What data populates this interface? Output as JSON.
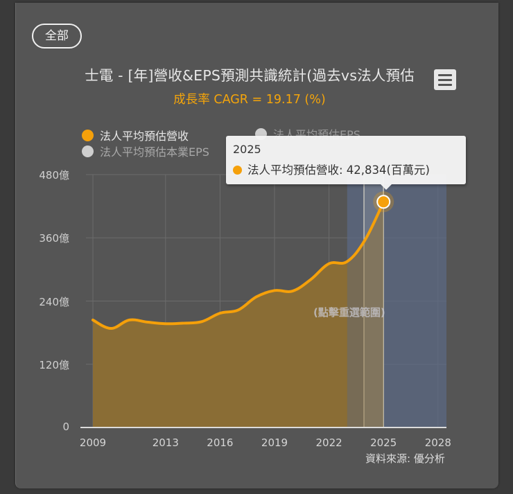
{
  "filter": {
    "label": "全部"
  },
  "header": {
    "title": "士電 - [年]營收&EPS預測共識統計(過去vs法人預估)",
    "title_visible": "士電 - [年]營收&EPS預測共識統計(過去vs法人預估",
    "subtitle": "成長率 CAGR = 19.17 (%)"
  },
  "menu": {
    "icon": "hamburger-menu-icon"
  },
  "legend": [
    {
      "label": "法人平均預估營收",
      "color": "#f5a00a",
      "active": true
    },
    {
      "label": "法人平均預估EPS",
      "color": "#cccccc",
      "active": false
    },
    {
      "label": "法人平均預估本業EPS",
      "color": "#cccccc",
      "active": false
    }
  ],
  "tooltip": {
    "header": "2025",
    "series": "法人平均預估營收",
    "value_text": "42,834(百萬元)",
    "row": "法人平均預估營收: 42,834(百萬元)",
    "color": "#f5a00a"
  },
  "hint": "(點擊重選範圍)",
  "source": "資料來源: 優分析",
  "colors": {
    "line": "#f5a00a",
    "area": "#8a6d36",
    "forecast_band": "#5c6a85",
    "highlight_band": "#a0927c",
    "panel": "#555555",
    "grid": "#6c6c6c"
  },
  "chart_data": {
    "type": "area",
    "title": "士電 - [年]營收&EPS預測共識統計(過去vs法人預估)",
    "subtitle": "成長率 CAGR = 19.17 (%)",
    "xlabel": "",
    "ylabel": "",
    "x_ticks": [
      "2009",
      "2013",
      "2016",
      "2019",
      "2022",
      "2025",
      "2028"
    ],
    "y_ticks": [
      "0",
      "120億",
      "240億",
      "360億",
      "480億"
    ],
    "ylim": [
      0,
      480
    ],
    "xlim": [
      2009,
      2028
    ],
    "grid": true,
    "legend_position": "top-left",
    "units": "億",
    "x": [
      2009,
      2010,
      2011,
      2012,
      2013,
      2014,
      2015,
      2016,
      2017,
      2018,
      2019,
      2020,
      2021,
      2022,
      2023,
      2024,
      2025
    ],
    "series": [
      {
        "name": "法人平均預估營收",
        "values": [
          204,
          188,
          204,
          200,
          197,
          198,
          201,
          217,
          223,
          248,
          260,
          259,
          281,
          311,
          315,
          357,
          428.34
        ]
      }
    ],
    "forecast_region": [
      2023,
      2028.5
    ],
    "highlight_point": {
      "x": 2025,
      "value": 428.34,
      "label": "42,834(百萬元)"
    },
    "source": "資料來源: 優分析"
  }
}
